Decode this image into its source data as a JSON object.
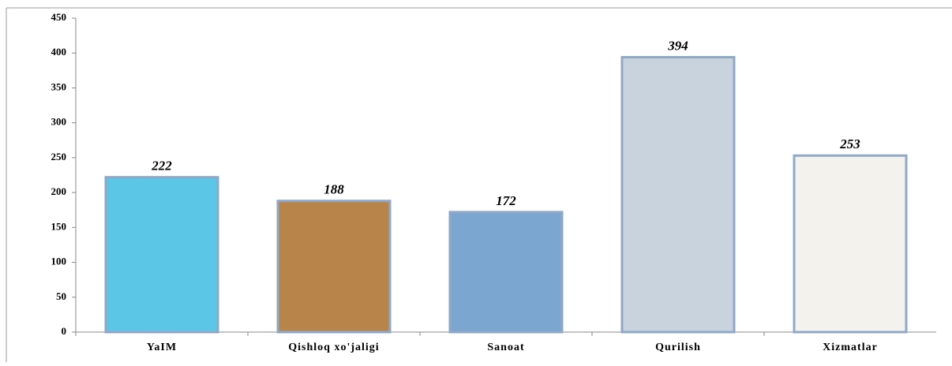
{
  "chart_data": {
    "type": "bar",
    "categories": [
      "YaIM",
      "Qishloq xo'jaligi",
      "Sanoat",
      "Qurilish",
      "Xizmatlar"
    ],
    "values": [
      222,
      188,
      172,
      394,
      253
    ],
    "colors": [
      "#5cc6e6",
      "#b8844a",
      "#7aa6cf",
      "#c9d3de",
      "#f4f2ec"
    ],
    "ylim": [
      0,
      450
    ],
    "yticks": [
      0,
      50,
      100,
      150,
      200,
      250,
      300,
      350,
      400,
      450
    ]
  }
}
